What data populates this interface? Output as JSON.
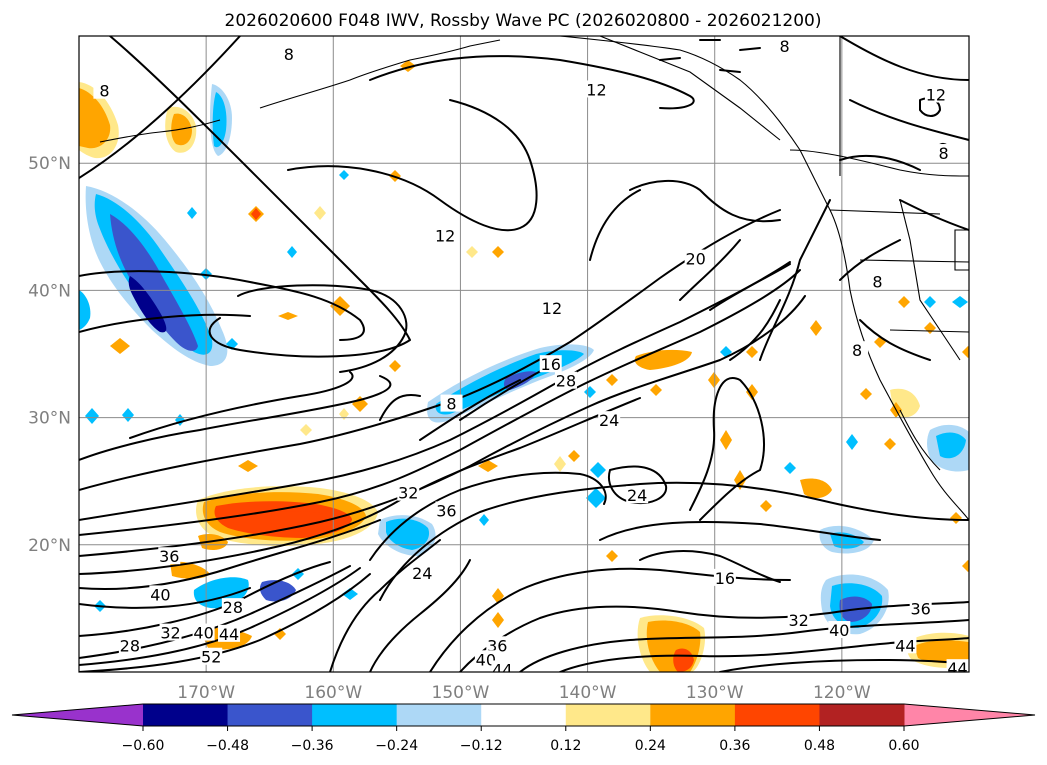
{
  "chart_data": {
    "type": "contour-map",
    "title": "2026020600 F048 IWV, Rossby Wave PC (2026020800 - 2026021200)",
    "lon_range": [
      -180,
      -110
    ],
    "lat_range": [
      10,
      60
    ],
    "lon_ticks": [
      {
        "value": -170,
        "label": "170°W"
      },
      {
        "value": -160,
        "label": "160°W"
      },
      {
        "value": -150,
        "label": "150°W"
      },
      {
        "value": -140,
        "label": "140°W"
      },
      {
        "value": -130,
        "label": "130°W"
      },
      {
        "value": -120,
        "label": "120°W"
      }
    ],
    "lat_ticks": [
      {
        "value": 50,
        "label": "50°N"
      },
      {
        "value": 40,
        "label": "40°N"
      },
      {
        "value": 30,
        "label": "30°N"
      },
      {
        "value": 20,
        "label": "20°N"
      }
    ],
    "grid": true,
    "colorbar": {
      "orientation": "horizontal",
      "extend": "both",
      "bounds": [
        -0.6,
        -0.48,
        -0.36,
        -0.24,
        -0.12,
        0.12,
        0.24,
        0.36,
        0.48,
        0.6
      ],
      "tick_labels": [
        "−0.60",
        "−0.48",
        "−0.36",
        "−0.24",
        "−0.12",
        "0.12",
        "0.24",
        "0.36",
        "0.48",
        "0.60"
      ],
      "colors": [
        "#9932cc",
        "#00008b",
        "#3a55cc",
        "#00bfff",
        "#add8f6",
        "#ffffff",
        "#ffe88a",
        "#ffa500",
        "#ff4500",
        "#b22222",
        "#ff85a8"
      ]
    },
    "contour_levels": [
      "8",
      "12",
      "16",
      "20",
      "24",
      "28",
      "32",
      "36",
      "40",
      "44",
      "52"
    ],
    "contour_labels": [
      {
        "text": "8",
        "lon": -178,
        "lat": 55.7
      },
      {
        "text": "8",
        "lon": -163.5,
        "lat": 58.6
      },
      {
        "text": "8",
        "lon": -150.7,
        "lat": 31.1
      },
      {
        "text": "8",
        "lon": -117.2,
        "lat": 40.7
      },
      {
        "text": "8",
        "lon": -118.8,
        "lat": 35.3
      },
      {
        "text": "8",
        "lon": -112,
        "lat": 50.8
      },
      {
        "text": "8",
        "lon": -124.5,
        "lat": 59.2
      },
      {
        "text": "12",
        "lon": -139.3,
        "lat": 55.8
      },
      {
        "text": "12",
        "lon": -151.2,
        "lat": 44.3
      },
      {
        "text": "12",
        "lon": -142.8,
        "lat": 38.6
      },
      {
        "text": "12",
        "lon": -112.6,
        "lat": 55.4
      },
      {
        "text": "16",
        "lon": -142.9,
        "lat": 34.2
      },
      {
        "text": "16",
        "lon": -129.2,
        "lat": 17.4
      },
      {
        "text": "20",
        "lon": -131.5,
        "lat": 42.5
      },
      {
        "text": "24",
        "lon": -138.3,
        "lat": 29.8
      },
      {
        "text": "24",
        "lon": -136.1,
        "lat": 23.9
      },
      {
        "text": "24",
        "lon": -153,
        "lat": 17.8
      },
      {
        "text": "28",
        "lon": -141.7,
        "lat": 32.9
      },
      {
        "text": "28",
        "lon": -167.9,
        "lat": 15.1
      },
      {
        "text": "28",
        "lon": -176,
        "lat": 12.1
      },
      {
        "text": "32",
        "lon": -154.1,
        "lat": 24.1
      },
      {
        "text": "32",
        "lon": -123.4,
        "lat": 14.1
      },
      {
        "text": "32",
        "lon": -172.8,
        "lat": 13.1
      },
      {
        "text": "36",
        "lon": -151.1,
        "lat": 22.7
      },
      {
        "text": "36",
        "lon": -172.9,
        "lat": 19.1
      },
      {
        "text": "36",
        "lon": -113.8,
        "lat": 15
      },
      {
        "text": "36",
        "lon": -147.1,
        "lat": 12.1
      },
      {
        "text": "40",
        "lon": -173.6,
        "lat": 16.1
      },
      {
        "text": "40",
        "lon": -170.2,
        "lat": 13.1
      },
      {
        "text": "40",
        "lon": -120.2,
        "lat": 13.3
      },
      {
        "text": "40",
        "lon": -148,
        "lat": 11
      },
      {
        "text": "44",
        "lon": -168.2,
        "lat": 13
      },
      {
        "text": "44",
        "lon": -146.7,
        "lat": 10.2
      },
      {
        "text": "44",
        "lon": -115,
        "lat": 12.1
      },
      {
        "text": "44",
        "lon": -110.9,
        "lat": 10.3
      },
      {
        "text": "52",
        "lon": -169.6,
        "lat": 11.2
      }
    ]
  }
}
